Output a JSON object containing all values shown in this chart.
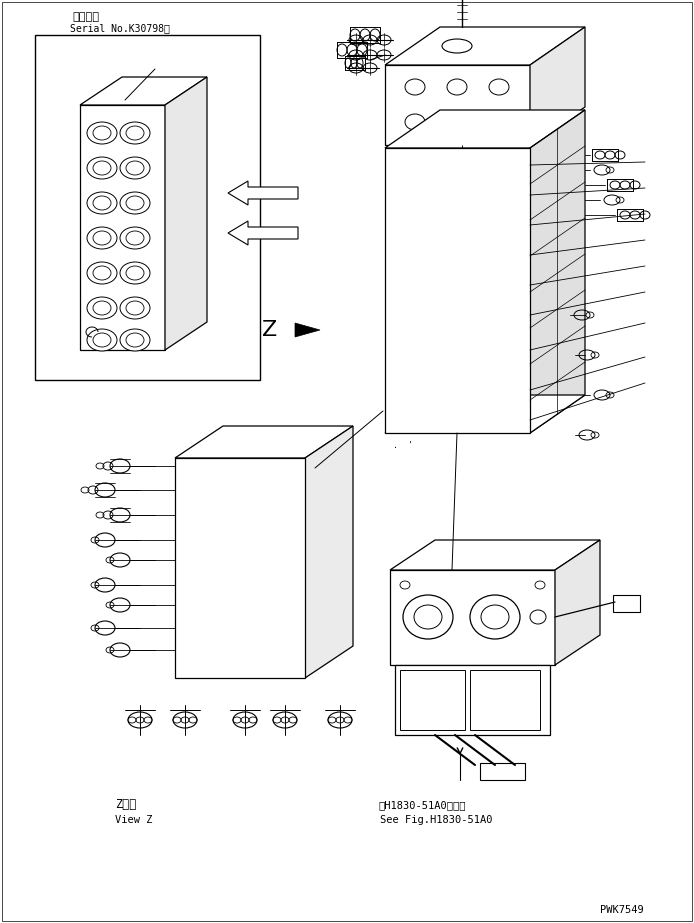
{
  "bg_color": "#ffffff",
  "line_color": "#000000",
  "fig_width": 6.94,
  "fig_height": 9.23,
  "dpi": 100,
  "title_jp": "適用号機",
  "title_serial": "Serial No.K30798～",
  "label_view_jp": "Z　視",
  "label_view_en": "View Z",
  "label_ref_jp": "第H1830-51A0図参照",
  "label_ref_en": "See Fig.H1830-51A0",
  "watermark": "PWK7549"
}
